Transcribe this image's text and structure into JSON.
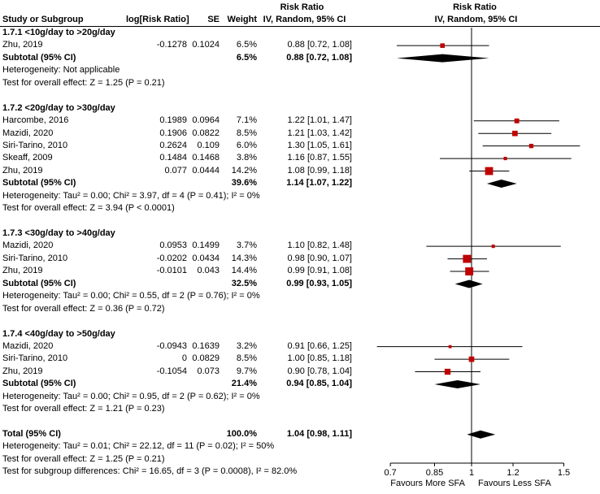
{
  "header": {
    "col_study": "Study or Subgroup",
    "col_log_rr": "log[Risk Ratio]",
    "col_se": "SE",
    "col_weight": "Weight",
    "col_rr_title": "Risk Ratio",
    "col_ci_text": "IV, Random, 95% CI",
    "plot_title": "Risk Ratio",
    "plot_subtitle": "IV, Random, 95% CI"
  },
  "axis": {
    "scale": "log",
    "ticks": [
      0.7,
      0.85,
      1,
      1.2,
      1.5
    ],
    "tick_labels": [
      "0.7",
      "0.85",
      "1",
      "1.2",
      "1.5"
    ],
    "left_label": "Favours More SFA",
    "right_label": "Favours Less SFA"
  },
  "colors": {
    "marker": "#C00000",
    "line": "#000000",
    "diamond": "#000000"
  },
  "chart_data": {
    "type": "forest",
    "effect_measure": "Risk Ratio",
    "model": "IV, Random, 95% CI",
    "x_scale": "log",
    "subgroups": [
      {
        "label": "1.7.1 <10g/day to >20g/day",
        "studies": [
          {
            "name": "Zhu, 2019",
            "log_rr": "-0.1278",
            "se": "0.1024",
            "weight": "6.5%",
            "ci_text": "0.88 [0.72, 1.08]",
            "rr": 0.88,
            "lo": 0.72,
            "hi": 1.08
          }
        ],
        "subtotal": {
          "label": "Subtotal (95% CI)",
          "weight": "6.5%",
          "ci_text": "0.88 [0.72, 1.08]",
          "rr": 0.88,
          "lo": 0.72,
          "hi": 1.08
        },
        "heterogeneity": "Heterogeneity: Not applicable",
        "overall_effect": "Test for overall effect: Z = 1.25 (P = 0.21)"
      },
      {
        "label": "1.7.2 <20g/day to >30g/day",
        "studies": [
          {
            "name": "Harcombe, 2016",
            "log_rr": "0.1989",
            "se": "0.0964",
            "weight": "7.1%",
            "ci_text": "1.22 [1.01, 1.47]",
            "rr": 1.22,
            "lo": 1.01,
            "hi": 1.47
          },
          {
            "name": "Mazidi, 2020",
            "log_rr": "0.1906",
            "se": "0.0822",
            "weight": "8.5%",
            "ci_text": "1.21 [1.03, 1.42]",
            "rr": 1.21,
            "lo": 1.03,
            "hi": 1.42
          },
          {
            "name": "Siri-Tarino, 2010",
            "log_rr": "0.2624",
            "se": "0.109",
            "weight": "6.0%",
            "ci_text": "1.30 [1.05, 1.61]",
            "rr": 1.3,
            "lo": 1.05,
            "hi": 1.61
          },
          {
            "name": "Skeaff, 2009",
            "log_rr": "0.1484",
            "se": "0.1468",
            "weight": "3.8%",
            "ci_text": "1.16 [0.87, 1.55]",
            "rr": 1.16,
            "lo": 0.87,
            "hi": 1.55
          },
          {
            "name": "Zhu, 2019",
            "log_rr": "0.077",
            "se": "0.0444",
            "weight": "14.2%",
            "ci_text": "1.08 [0.99, 1.18]",
            "rr": 1.08,
            "lo": 0.99,
            "hi": 1.18
          }
        ],
        "subtotal": {
          "label": "Subtotal (95% CI)",
          "weight": "39.6%",
          "ci_text": "1.14 [1.07, 1.22]",
          "rr": 1.14,
          "lo": 1.07,
          "hi": 1.22
        },
        "heterogeneity": "Heterogeneity: Tau² = 0.00; Chi² = 3.97, df = 4 (P = 0.41); I² = 0%",
        "overall_effect": "Test for overall effect: Z = 3.94 (P < 0.0001)"
      },
      {
        "label": "1.7.3 <30g/day to >40g/day",
        "studies": [
          {
            "name": "Mazidi, 2020",
            "log_rr": "0.0953",
            "se": "0.1499",
            "weight": "3.7%",
            "ci_text": "1.10 [0.82, 1.48]",
            "rr": 1.1,
            "lo": 0.82,
            "hi": 1.48
          },
          {
            "name": "Siri-Tarino, 2010",
            "log_rr": "-0.0202",
            "se": "0.0434",
            "weight": "14.3%",
            "ci_text": "0.98 [0.90, 1.07]",
            "rr": 0.98,
            "lo": 0.9,
            "hi": 1.07
          },
          {
            "name": "Zhu, 2019",
            "log_rr": "-0.0101",
            "se": "0.043",
            "weight": "14.4%",
            "ci_text": "0.99 [0.91, 1.08]",
            "rr": 0.99,
            "lo": 0.91,
            "hi": 1.08
          }
        ],
        "subtotal": {
          "label": "Subtotal (95% CI)",
          "weight": "32.5%",
          "ci_text": "0.99 [0.93, 1.05]",
          "rr": 0.99,
          "lo": 0.93,
          "hi": 1.05
        },
        "heterogeneity": "Heterogeneity: Tau² = 0.00; Chi² = 0.55, df = 2 (P = 0.76); I² = 0%",
        "overall_effect": "Test for overall effect: Z = 0.36 (P = 0.72)"
      },
      {
        "label": "1.7.4 <40g/day to >50g/day",
        "studies": [
          {
            "name": "Mazidi, 2020",
            "log_rr": "-0.0943",
            "se": "0.1639",
            "weight": "3.2%",
            "ci_text": "0.91 [0.66, 1.25]",
            "rr": 0.91,
            "lo": 0.66,
            "hi": 1.25
          },
          {
            "name": "Siri-Tarino, 2010",
            "log_rr": "0",
            "se": "0.0829",
            "weight": "8.5%",
            "ci_text": "1.00 [0.85, 1.18]",
            "rr": 1.0,
            "lo": 0.85,
            "hi": 1.18
          },
          {
            "name": "Zhu, 2019",
            "log_rr": "-0.1054",
            "se": "0.073",
            "weight": "9.7%",
            "ci_text": "0.90 [0.78, 1.04]",
            "rr": 0.9,
            "lo": 0.78,
            "hi": 1.04
          }
        ],
        "subtotal": {
          "label": "Subtotal (95% CI)",
          "weight": "21.4%",
          "ci_text": "0.94 [0.85, 1.04]",
          "rr": 0.94,
          "lo": 0.85,
          "hi": 1.04
        },
        "heterogeneity": "Heterogeneity: Tau² = 0.00; Chi² = 0.95, df = 2 (P = 0.62); I² = 0%",
        "overall_effect": "Test for overall effect: Z = 1.21 (P = 0.23)"
      }
    ],
    "total": {
      "label": "Total (95% CI)",
      "weight": "100.0%",
      "ci_text": "1.04 [0.98, 1.11]",
      "rr": 1.04,
      "lo": 0.98,
      "hi": 1.11,
      "heterogeneity": "Heterogeneity: Tau² = 0.01; Chi² = 22.12, df = 11 (P = 0.02); I² = 50%",
      "overall_effect": "Test for overall effect: Z = 1.25 (P = 0.21)",
      "subgroup_differences": "Test for subgroup differences: Chi² = 16.65, df = 3 (P = 0.0008), I² = 82.0%"
    }
  }
}
